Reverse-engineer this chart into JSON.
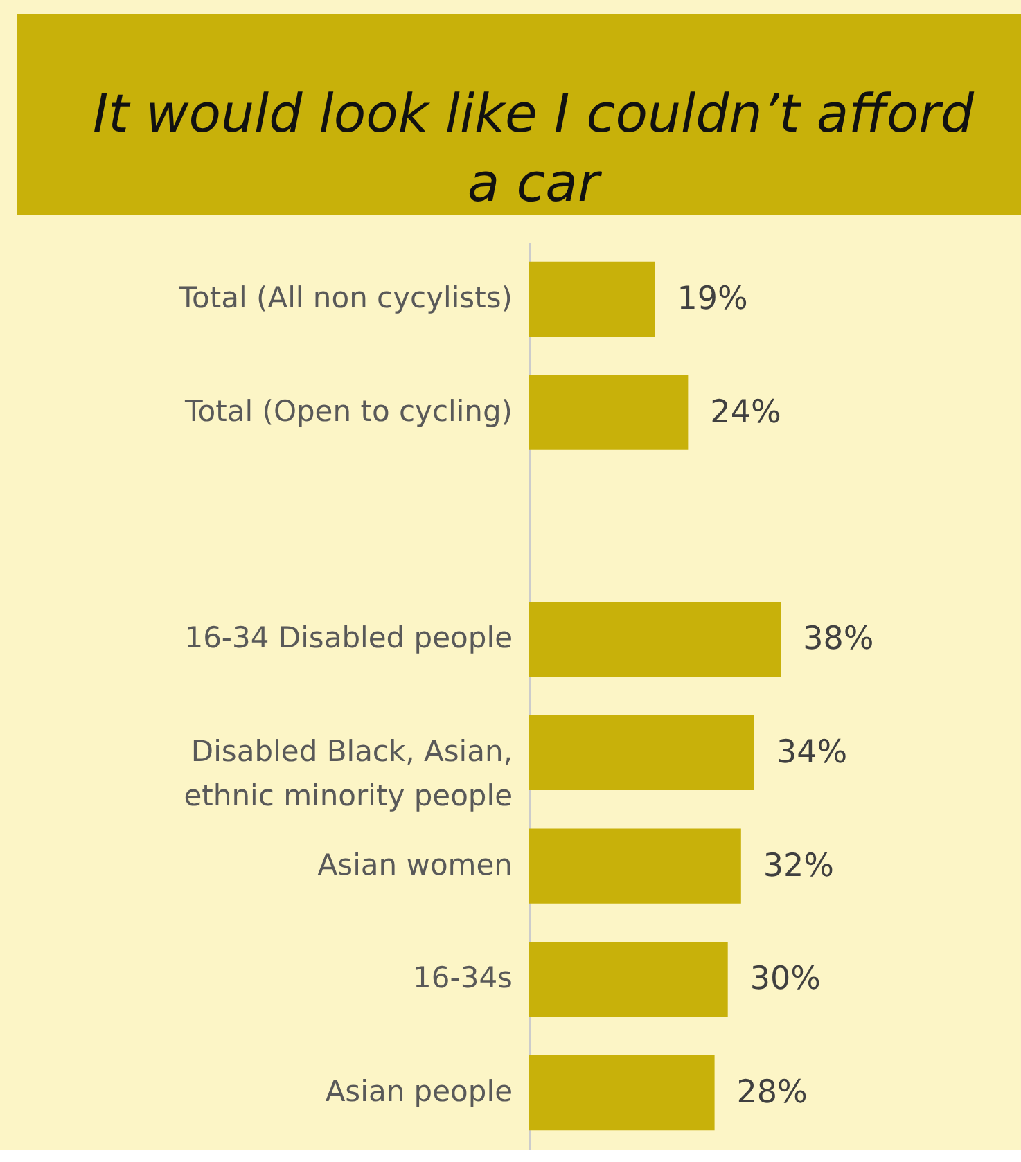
{
  "chart_data": {
    "type": "bar",
    "orientation": "horizontal",
    "title": "It would look like I couldn’t afford a car",
    "categories": [
      "Total (All non cycylists)",
      "Total (Open to cycling)",
      null,
      "16-34 Disabled people",
      "Disabled Black, Asian, ethnic minority people",
      "Asian women",
      "16-34s",
      "Asian people"
    ],
    "values": [
      19,
      24,
      null,
      38,
      34,
      32,
      30,
      28
    ],
    "value_labels": [
      "19%",
      "24%",
      null,
      "38%",
      "34%",
      "32%",
      "30%",
      "28%"
    ],
    "color": "#c8b10a"
  }
}
